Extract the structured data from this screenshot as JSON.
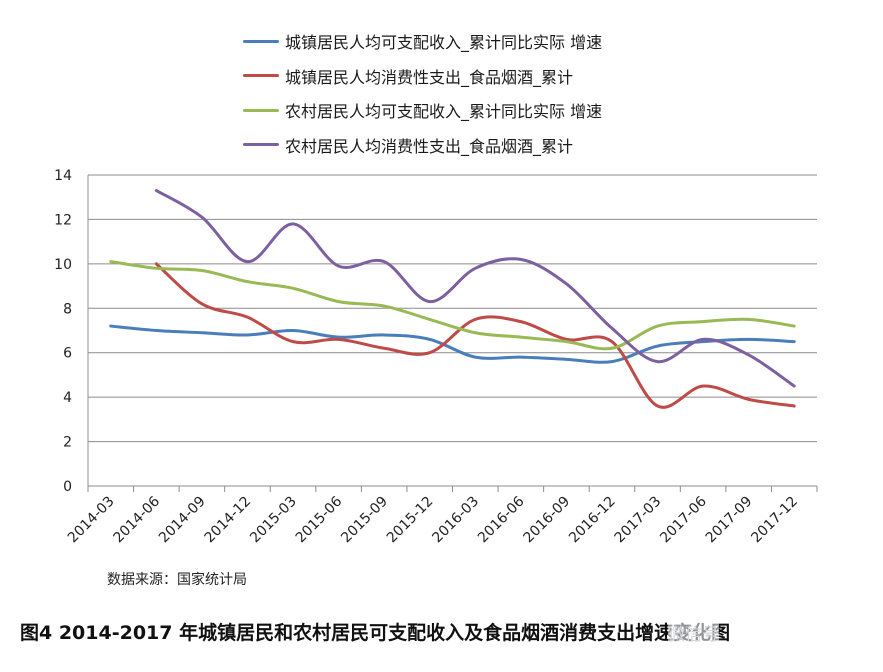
{
  "chart_data": {
    "type": "line",
    "title": "",
    "xlabel": "",
    "ylabel": "",
    "categories": [
      "2014-03",
      "2014-06",
      "2014-09",
      "2014-12",
      "2015-03",
      "2015-06",
      "2015-09",
      "2015-12",
      "2016-03",
      "2016-06",
      "2016-09",
      "2016-12",
      "2017-03",
      "2017-06",
      "2017-09",
      "2017-12"
    ],
    "ylim": [
      0,
      14
    ],
    "yticks": [
      0,
      2,
      4,
      6,
      8,
      10,
      12,
      14
    ],
    "grid": true,
    "legend_position": "top",
    "series": [
      {
        "name": "城镇居民人均可支配收入_累计同比实际 增速",
        "color": "#4a7ebb",
        "values": [
          7.2,
          7.0,
          6.9,
          6.8,
          7.0,
          6.7,
          6.8,
          6.6,
          5.8,
          5.8,
          5.7,
          5.6,
          6.3,
          6.5,
          6.6,
          6.5
        ]
      },
      {
        "name": "城镇居民人均消费性支出_食品烟酒_累计",
        "color": "#be4b48",
        "values": [
          null,
          10.0,
          8.2,
          7.6,
          6.5,
          6.6,
          6.2,
          6.0,
          7.5,
          7.4,
          6.6,
          6.5,
          3.6,
          4.5,
          3.9,
          3.6
        ]
      },
      {
        "name": "农村居民人均可支配收入_累计同比实际 增速",
        "color": "#98b954",
        "values": [
          10.1,
          9.8,
          9.7,
          9.2,
          8.9,
          8.3,
          8.1,
          7.5,
          6.9,
          6.7,
          6.5,
          6.2,
          7.2,
          7.4,
          7.5,
          7.2
        ]
      },
      {
        "name": "农村居民人均消费性支出_食品烟酒_累计",
        "color": "#7d60a0",
        "values": [
          null,
          13.3,
          12.1,
          10.1,
          11.8,
          9.9,
          10.1,
          8.3,
          9.8,
          10.2,
          9.1,
          7.1,
          5.6,
          6.6,
          5.9,
          4.5
        ]
      }
    ]
  },
  "source_text": "数据来源：国家统计局",
  "caption": "图4 2014-2017 年城镇居民和农村居民可支配收入及食品烟酒消费支出增速变化图",
  "watermark": "微信号"
}
